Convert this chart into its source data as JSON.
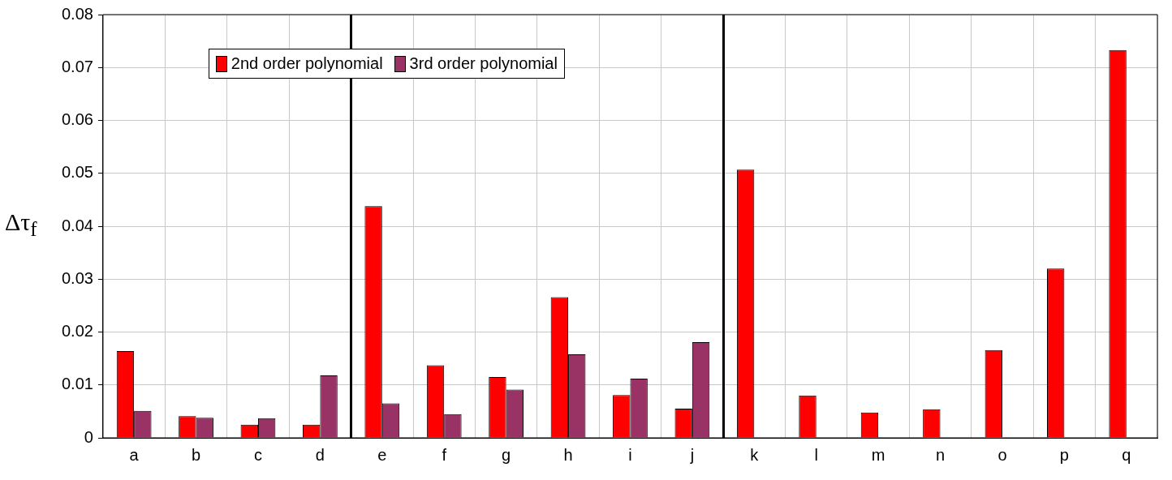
{
  "chart_data": {
    "type": "bar",
    "ylabel": "Δτ$_{f}$",
    "categories": [
      "a",
      "b",
      "c",
      "d",
      "e",
      "f",
      "g",
      "h",
      "i",
      "j",
      "k",
      "l",
      "m",
      "n",
      "o",
      "p",
      "q"
    ],
    "series": [
      {
        "name": "2nd order polynomial",
        "color": "#ff0000",
        "values": [
          0.0164,
          0.0041,
          0.0025,
          0.0025,
          0.0438,
          0.0137,
          0.0115,
          0.0266,
          0.0081,
          0.0055,
          0.0507,
          0.008,
          0.0048,
          0.0054,
          0.0166,
          0.032,
          0.0733
        ]
      },
      {
        "name": "3rd order polynomial",
        "color": "#993366",
        "values": [
          0.0051,
          0.0038,
          0.0037,
          0.0118,
          0.0065,
          0.0045,
          0.0091,
          0.0158,
          0.0112,
          0.0181,
          null,
          null,
          null,
          null,
          null,
          null,
          null
        ]
      }
    ],
    "ylim": [
      0,
      0.08
    ],
    "yticks": [
      0,
      0.01,
      0.02,
      0.03,
      0.04,
      0.05,
      0.06,
      0.07,
      0.08
    ],
    "grid": true,
    "legend": "top left"
  }
}
